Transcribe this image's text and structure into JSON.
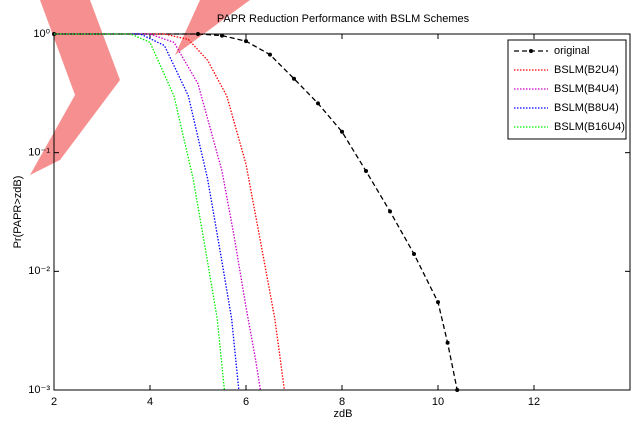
{
  "chart_data": {
    "type": "line",
    "title": "PAPR Reduction Performance with BSLM Schemes",
    "x_label": "zdB",
    "y_label": "Pr(PAPR>zdB)",
    "xlim": [
      2,
      14
    ],
    "xticks": [
      2,
      4,
      6,
      8,
      10,
      12
    ],
    "ylim": [
      0.001,
      1
    ],
    "log_y": true,
    "yticks": [
      {
        "value": 1,
        "label": "10⁰"
      },
      {
        "value": 0.1,
        "label": "10⁻¹"
      },
      {
        "value": 0.01,
        "label": "10⁻²"
      },
      {
        "value": 0.001,
        "label": "10⁻³"
      }
    ],
    "legend": "upper right",
    "series": [
      {
        "name": "original",
        "color": "#000000",
        "dash": "dashed",
        "marker": true,
        "x": [
          2,
          5,
          5.5,
          6,
          6.5,
          7,
          7.5,
          8,
          8.5,
          9,
          9.5,
          10,
          10.2,
          10.4
        ],
        "values": [
          1,
          1,
          0.97,
          0.87,
          0.67,
          0.42,
          0.26,
          0.15,
          0.07,
          0.032,
          0.014,
          0.0055,
          0.0025,
          0.001
        ]
      },
      {
        "name": "BSLM(B2U4)",
        "color": "#ff0000",
        "dash": "dotted",
        "marker": false,
        "x": [
          2,
          4.3,
          4.8,
          5.2,
          5.6,
          6,
          6.3,
          6.6,
          6.8
        ],
        "values": [
          1,
          1,
          0.9,
          0.6,
          0.3,
          0.08,
          0.018,
          0.004,
          0.001
        ]
      },
      {
        "name": "BSLM(B4U4)",
        "color": "#cc00cc",
        "dash": "dotted",
        "marker": false,
        "x": [
          2,
          4,
          4.5,
          5,
          5.5,
          5.75,
          6,
          6.2,
          6.3
        ],
        "values": [
          1,
          1,
          0.85,
          0.38,
          0.07,
          0.02,
          0.005,
          0.0018,
          0.001
        ]
      },
      {
        "name": "BSLM(B8U4)",
        "color": "#0000ff",
        "dash": "dotted",
        "marker": false,
        "x": [
          2,
          3.8,
          4.3,
          4.8,
          5.2,
          5.5,
          5.7,
          5.85
        ],
        "values": [
          1,
          1,
          0.8,
          0.3,
          0.06,
          0.012,
          0.004,
          0.001
        ]
      },
      {
        "name": "BSLM(B16U4)",
        "color": "#00ee00",
        "dash": "dotted",
        "marker": false,
        "x": [
          2,
          3.6,
          4,
          4.5,
          4.9,
          5.2,
          5.4,
          5.55
        ],
        "values": [
          1,
          1,
          0.85,
          0.3,
          0.06,
          0.012,
          0.004,
          0.001
        ]
      }
    ]
  }
}
